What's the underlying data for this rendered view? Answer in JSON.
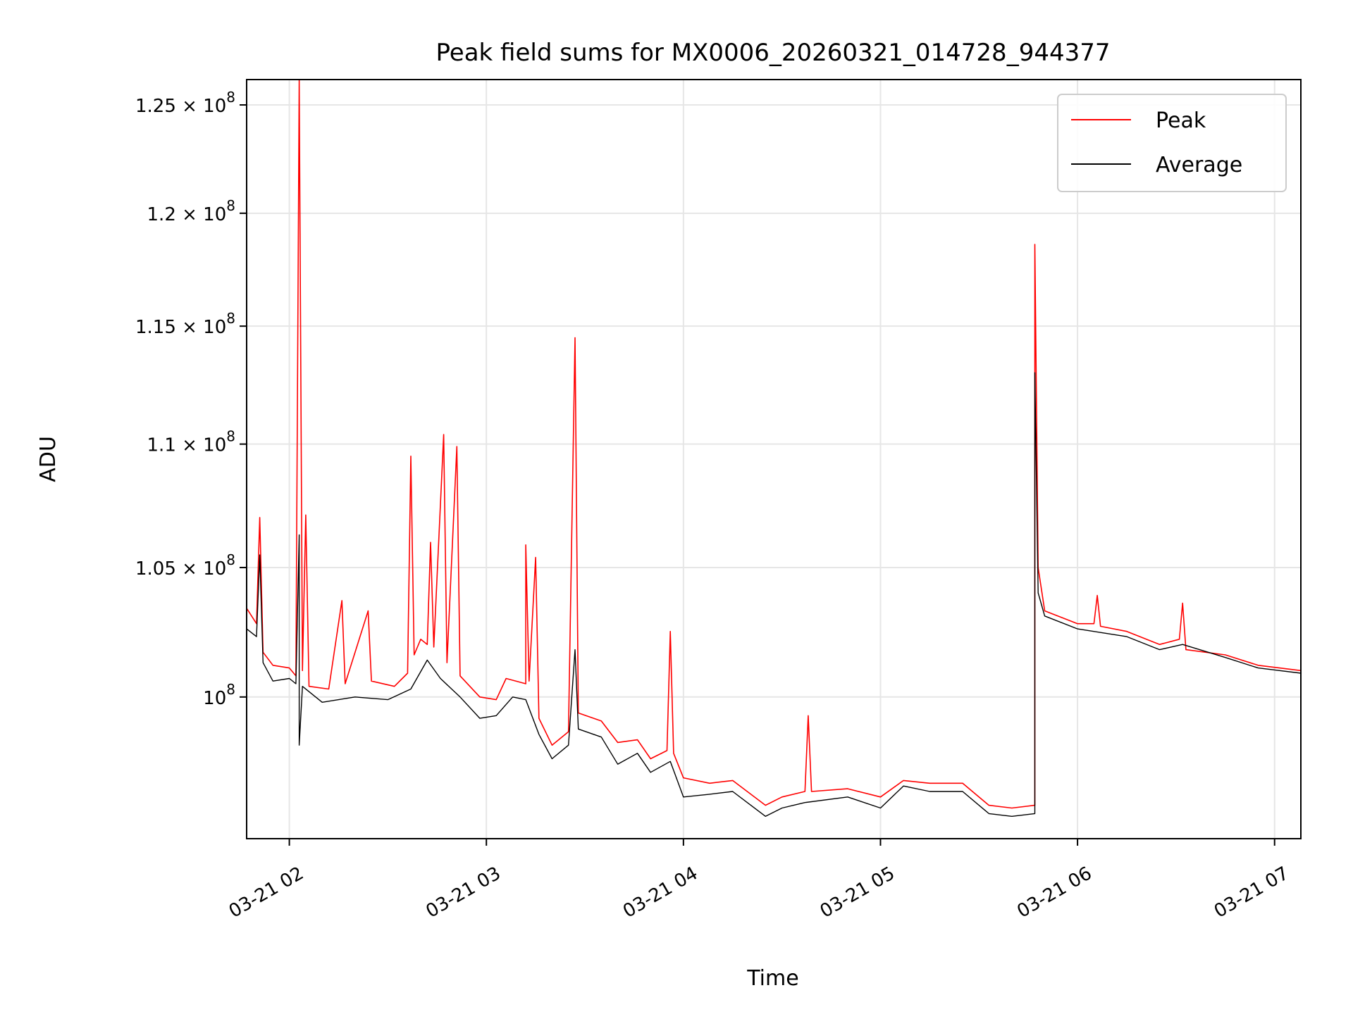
{
  "chart_data": {
    "type": "line",
    "title": "Peak field sums for MX0006_20260321_014728_944377",
    "xlabel": "Time",
    "ylabel": "ADU",
    "grid": true,
    "y_scale": "log",
    "legend_position": "upper-right",
    "xlim": [
      "2026-03-21 01:47",
      "2026-03-21 07:08"
    ],
    "ylim": [
      94800000,
      126200000
    ],
    "x_ticks": [
      {
        "value": "2026-03-21 02:00",
        "label": "03-21 02"
      },
      {
        "value": "2026-03-21 03:00",
        "label": "03-21 03"
      },
      {
        "value": "2026-03-21 04:00",
        "label": "03-21 04"
      },
      {
        "value": "2026-03-21 05:00",
        "label": "03-21 05"
      },
      {
        "value": "2026-03-21 06:00",
        "label": "03-21 06"
      },
      {
        "value": "2026-03-21 07:00",
        "label": "03-21 07"
      }
    ],
    "y_ticks": [
      {
        "value": 100000000,
        "mantissa": "",
        "exponent": "8"
      },
      {
        "value": 105000000,
        "mantissa": "1.05",
        "exponent": "8"
      },
      {
        "value": 110000000,
        "mantissa": "1.1",
        "exponent": "8"
      },
      {
        "value": 115000000,
        "mantissa": "1.15",
        "exponent": "8"
      },
      {
        "value": 120000000,
        "mantissa": "1.2",
        "exponent": "8"
      },
      {
        "value": 125000000,
        "mantissa": "1.25",
        "exponent": "8"
      }
    ],
    "y_tick_base": "10",
    "y_tick_times": "×",
    "series": [
      {
        "name": "Peak",
        "color": "#ff0000",
        "points": [
          [
            "2026-03-21 01:47",
            103400000
          ],
          [
            "2026-03-21 01:50",
            102800000
          ],
          [
            "2026-03-21 01:51",
            107000000
          ],
          [
            "2026-03-21 01:52",
            101700000
          ],
          [
            "2026-03-21 01:55",
            101200000
          ],
          [
            "2026-03-21 02:00",
            101100000
          ],
          [
            "2026-03-21 02:02",
            100800000
          ],
          [
            "2026-03-21 02:03",
            126200000
          ],
          [
            "2026-03-21 02:04",
            101000000
          ],
          [
            "2026-03-21 02:05",
            107100000
          ],
          [
            "2026-03-21 02:06",
            100400000
          ],
          [
            "2026-03-21 02:12",
            100300000
          ],
          [
            "2026-03-21 02:16",
            103700000
          ],
          [
            "2026-03-21 02:17",
            100500000
          ],
          [
            "2026-03-21 02:24",
            103300000
          ],
          [
            "2026-03-21 02:25",
            100600000
          ],
          [
            "2026-03-21 02:32",
            100400000
          ],
          [
            "2026-03-21 02:36",
            100900000
          ],
          [
            "2026-03-21 02:37",
            109500000
          ],
          [
            "2026-03-21 02:38",
            101600000
          ],
          [
            "2026-03-21 02:40",
            102200000
          ],
          [
            "2026-03-21 02:42",
            102000000
          ],
          [
            "2026-03-21 02:43",
            106000000
          ],
          [
            "2026-03-21 02:44",
            101900000
          ],
          [
            "2026-03-21 02:47",
            110400000
          ],
          [
            "2026-03-21 02:48",
            101300000
          ],
          [
            "2026-03-21 02:51",
            109900000
          ],
          [
            "2026-03-21 02:52",
            100800000
          ],
          [
            "2026-03-21 02:58",
            100000000
          ],
          [
            "2026-03-21 03:03",
            99900000
          ],
          [
            "2026-03-21 03:06",
            100700000
          ],
          [
            "2026-03-21 03:12",
            100500000
          ],
          [
            "2026-03-21 03:12",
            105900000
          ],
          [
            "2026-03-21 03:13",
            100600000
          ],
          [
            "2026-03-21 03:15",
            105400000
          ],
          [
            "2026-03-21 03:16",
            99200000
          ],
          [
            "2026-03-21 03:20",
            98200000
          ],
          [
            "2026-03-21 03:25",
            98700000
          ],
          [
            "2026-03-21 03:27",
            114500000
          ],
          [
            "2026-03-21 03:28",
            99400000
          ],
          [
            "2026-03-21 03:35",
            99100000
          ],
          [
            "2026-03-21 03:40",
            98300000
          ],
          [
            "2026-03-21 03:46",
            98400000
          ],
          [
            "2026-03-21 03:50",
            97700000
          ],
          [
            "2026-03-21 03:55",
            98000000
          ],
          [
            "2026-03-21 03:56",
            102500000
          ],
          [
            "2026-03-21 03:57",
            97900000
          ],
          [
            "2026-03-21 04:00",
            97000000
          ],
          [
            "2026-03-21 04:08",
            96800000
          ],
          [
            "2026-03-21 04:15",
            96900000
          ],
          [
            "2026-03-21 04:25",
            96000000
          ],
          [
            "2026-03-21 04:30",
            96300000
          ],
          [
            "2026-03-21 04:37",
            96500000
          ],
          [
            "2026-03-21 04:38",
            99300000
          ],
          [
            "2026-03-21 04:39",
            96500000
          ],
          [
            "2026-03-21 04:50",
            96600000
          ],
          [
            "2026-03-21 05:00",
            96300000
          ],
          [
            "2026-03-21 05:07",
            96900000
          ],
          [
            "2026-03-21 05:15",
            96800000
          ],
          [
            "2026-03-21 05:25",
            96800000
          ],
          [
            "2026-03-21 05:33",
            96000000
          ],
          [
            "2026-03-21 05:40",
            95900000
          ],
          [
            "2026-03-21 05:47",
            96000000
          ],
          [
            "2026-03-21 05:47",
            118600000
          ],
          [
            "2026-03-21 05:48",
            105000000
          ],
          [
            "2026-03-21 05:50",
            103300000
          ],
          [
            "2026-03-21 06:00",
            102800000
          ],
          [
            "2026-03-21 06:05",
            102800000
          ],
          [
            "2026-03-21 06:06",
            103900000
          ],
          [
            "2026-03-21 06:07",
            102700000
          ],
          [
            "2026-03-21 06:15",
            102500000
          ],
          [
            "2026-03-21 06:25",
            102000000
          ],
          [
            "2026-03-21 06:31",
            102200000
          ],
          [
            "2026-03-21 06:32",
            103600000
          ],
          [
            "2026-03-21 06:33",
            101800000
          ],
          [
            "2026-03-21 06:45",
            101600000
          ],
          [
            "2026-03-21 06:55",
            101200000
          ],
          [
            "2026-03-21 07:08",
            101000000
          ]
        ]
      },
      {
        "name": "Average",
        "color": "#000000",
        "points": [
          [
            "2026-03-21 01:47",
            102600000
          ],
          [
            "2026-03-21 01:50",
            102300000
          ],
          [
            "2026-03-21 01:51",
            105500000
          ],
          [
            "2026-03-21 01:52",
            101300000
          ],
          [
            "2026-03-21 01:55",
            100600000
          ],
          [
            "2026-03-21 02:00",
            100700000
          ],
          [
            "2026-03-21 02:02",
            100500000
          ],
          [
            "2026-03-21 02:03",
            106300000
          ],
          [
            "2026-03-21 02:03",
            98200000
          ],
          [
            "2026-03-21 02:04",
            100400000
          ],
          [
            "2026-03-21 02:10",
            99800000
          ],
          [
            "2026-03-21 02:20",
            100000000
          ],
          [
            "2026-03-21 02:30",
            99900000
          ],
          [
            "2026-03-21 02:37",
            100300000
          ],
          [
            "2026-03-21 02:42",
            101400000
          ],
          [
            "2026-03-21 02:46",
            100700000
          ],
          [
            "2026-03-21 02:52",
            100000000
          ],
          [
            "2026-03-21 02:58",
            99200000
          ],
          [
            "2026-03-21 03:03",
            99300000
          ],
          [
            "2026-03-21 03:08",
            100000000
          ],
          [
            "2026-03-21 03:12",
            99900000
          ],
          [
            "2026-03-21 03:16",
            98600000
          ],
          [
            "2026-03-21 03:20",
            97700000
          ],
          [
            "2026-03-21 03:25",
            98200000
          ],
          [
            "2026-03-21 03:27",
            101800000
          ],
          [
            "2026-03-21 03:28",
            98800000
          ],
          [
            "2026-03-21 03:35",
            98500000
          ],
          [
            "2026-03-21 03:40",
            97500000
          ],
          [
            "2026-03-21 03:46",
            97900000
          ],
          [
            "2026-03-21 03:50",
            97200000
          ],
          [
            "2026-03-21 03:56",
            97600000
          ],
          [
            "2026-03-21 04:00",
            96300000
          ],
          [
            "2026-03-21 04:08",
            96400000
          ],
          [
            "2026-03-21 04:15",
            96500000
          ],
          [
            "2026-03-21 04:25",
            95600000
          ],
          [
            "2026-03-21 04:30",
            95900000
          ],
          [
            "2026-03-21 04:37",
            96100000
          ],
          [
            "2026-03-21 04:50",
            96300000
          ],
          [
            "2026-03-21 05:00",
            95900000
          ],
          [
            "2026-03-21 05:07",
            96700000
          ],
          [
            "2026-03-21 05:15",
            96500000
          ],
          [
            "2026-03-21 05:25",
            96500000
          ],
          [
            "2026-03-21 05:33",
            95700000
          ],
          [
            "2026-03-21 05:40",
            95600000
          ],
          [
            "2026-03-21 05:47",
            95700000
          ],
          [
            "2026-03-21 05:47",
            113000000
          ],
          [
            "2026-03-21 05:48",
            104000000
          ],
          [
            "2026-03-21 05:50",
            103100000
          ],
          [
            "2026-03-21 06:00",
            102600000
          ],
          [
            "2026-03-21 06:15",
            102300000
          ],
          [
            "2026-03-21 06:25",
            101800000
          ],
          [
            "2026-03-21 06:32",
            102000000
          ],
          [
            "2026-03-21 06:45",
            101500000
          ],
          [
            "2026-03-21 06:55",
            101100000
          ],
          [
            "2026-03-21 07:08",
            100900000
          ]
        ]
      }
    ]
  }
}
